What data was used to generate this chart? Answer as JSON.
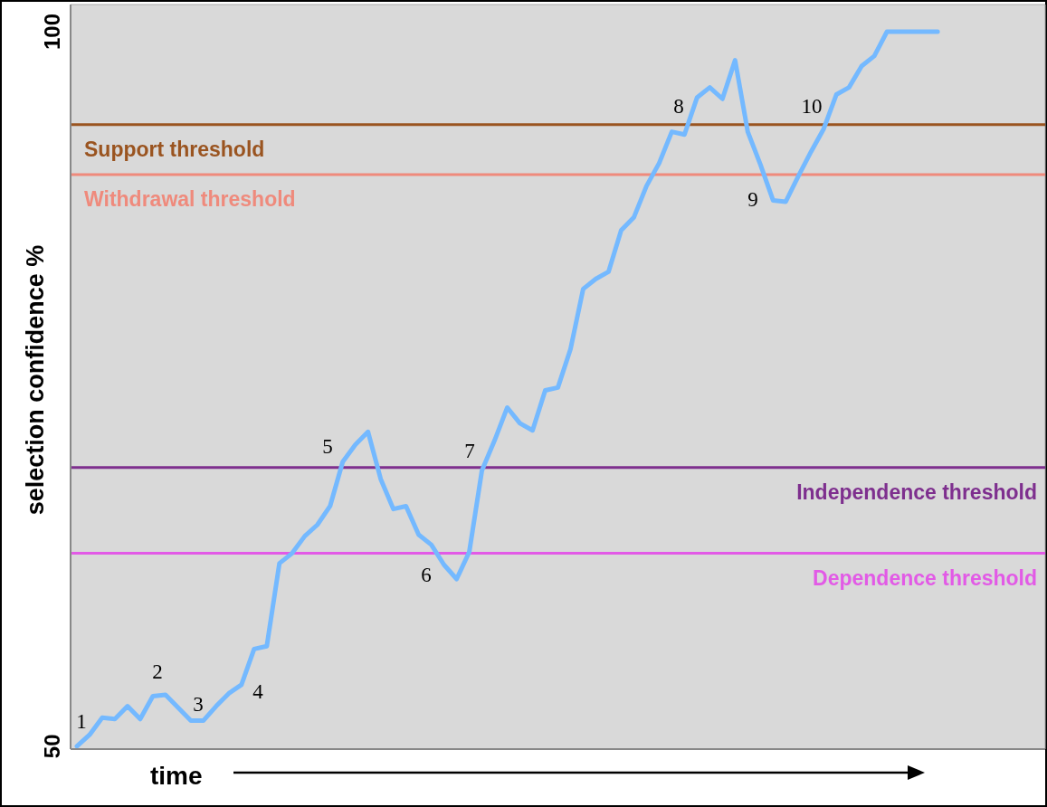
{
  "chart_data": {
    "type": "line",
    "ylabel": "selection confidence %",
    "xlabel": "time",
    "categories": [
      null,
      null,
      null,
      null,
      null,
      null,
      null,
      null,
      null,
      null,
      null,
      null,
      null,
      null,
      null,
      null,
      null,
      null,
      null,
      null,
      null,
      null,
      null,
      null,
      null,
      null,
      null,
      null,
      null,
      null,
      null,
      null,
      null,
      null,
      null,
      null,
      null,
      null,
      null,
      null,
      null,
      null,
      null,
      null,
      null,
      null,
      null,
      null,
      null,
      null,
      null,
      null,
      null,
      null,
      null,
      null,
      null,
      null,
      null,
      null,
      null,
      null,
      null,
      null,
      null,
      null,
      null,
      null,
      null,
      null,
      null,
      null,
      null,
      null,
      null,
      null,
      null
    ],
    "series": [
      {
        "color": "#74b9ff",
        "values": [
          50,
          50.8,
          52,
          51.9,
          52.8,
          51.9,
          53.5,
          53.6,
          52.7,
          51.8,
          51.8,
          52.8,
          53.7,
          54.3,
          56.8,
          57,
          62.8,
          63.5,
          64.7,
          65.5,
          66.8,
          69.9,
          71.1,
          72,
          68.7,
          66.6,
          66.8,
          64.8,
          64.1,
          62.7,
          61.7,
          63.6,
          69.3,
          71.4,
          73.7,
          72.6,
          72.1,
          74.9,
          75.1,
          77.8,
          82,
          82.7,
          83.2,
          86.1,
          87,
          89.2,
          90.8,
          93,
          92.8,
          95.4,
          96.1,
          95.3,
          98,
          93,
          90.7,
          88.2,
          88.1,
          89.9,
          91.6,
          93.2,
          95.6,
          96.1,
          97.6,
          98.3,
          100,
          100,
          100,
          100,
          100,
          null,
          null,
          null,
          null,
          null,
          null,
          null,
          null
        ]
      }
    ],
    "ylim": [
      49.8,
      101.9
    ],
    "yticks": [
      50,
      100
    ],
    "tick_labels": "y",
    "marker": "none",
    "line_style": "solid",
    "ref_lines": [
      {
        "axis": "y",
        "value": 93.5,
        "label": "Support threshold",
        "color": "#9a5420"
      },
      {
        "axis": "y",
        "value": 90,
        "label": "Withdrawal threshold",
        "color": "#ef8a7c"
      },
      {
        "axis": "y",
        "value": 69.5,
        "label": "Independence threshold",
        "color": "#7e2f8e"
      },
      {
        "axis": "y",
        "value": 63.5,
        "label": "Dependence threshold",
        "color": "#e25ae6"
      }
    ],
    "annotations": [
      "1",
      "2",
      "3",
      "4",
      "5",
      "6",
      "7",
      "8",
      "9",
      "10"
    ]
  }
}
